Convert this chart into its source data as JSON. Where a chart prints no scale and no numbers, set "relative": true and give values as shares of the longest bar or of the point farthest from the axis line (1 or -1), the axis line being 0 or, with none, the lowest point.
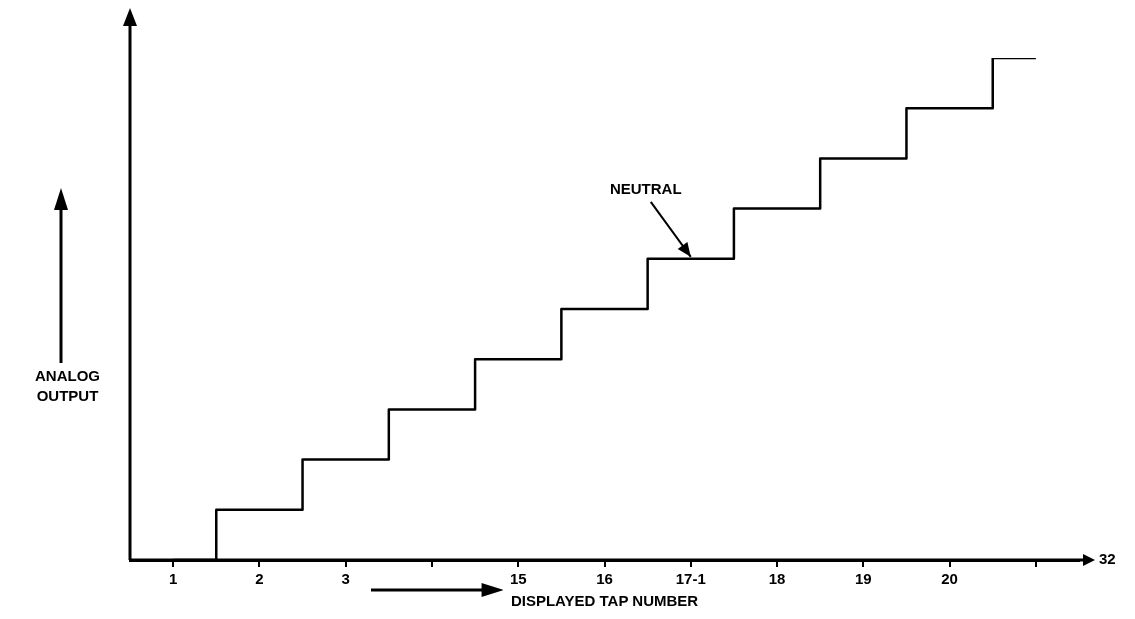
{
  "chart_data": {
    "type": "step",
    "relative": true,
    "categories": [
      "1",
      "2",
      "3",
      null,
      "15",
      "16",
      "17-1",
      "18",
      "19",
      "20",
      null
    ],
    "values": [
      0,
      0.1,
      0.2,
      0.3,
      0.4,
      0.5,
      0.6,
      0.7,
      0.8,
      0.9,
      1
    ],
    "color": "#000000",
    "xlabel": "DISPLAYED TAP NUMBER",
    "ylabel": "ANALOG OUTPUT",
    "annotations": [
      {
        "text": "NEUTRAL",
        "x": "17-1",
        "y": 0.6
      },
      "32"
    ]
  }
}
